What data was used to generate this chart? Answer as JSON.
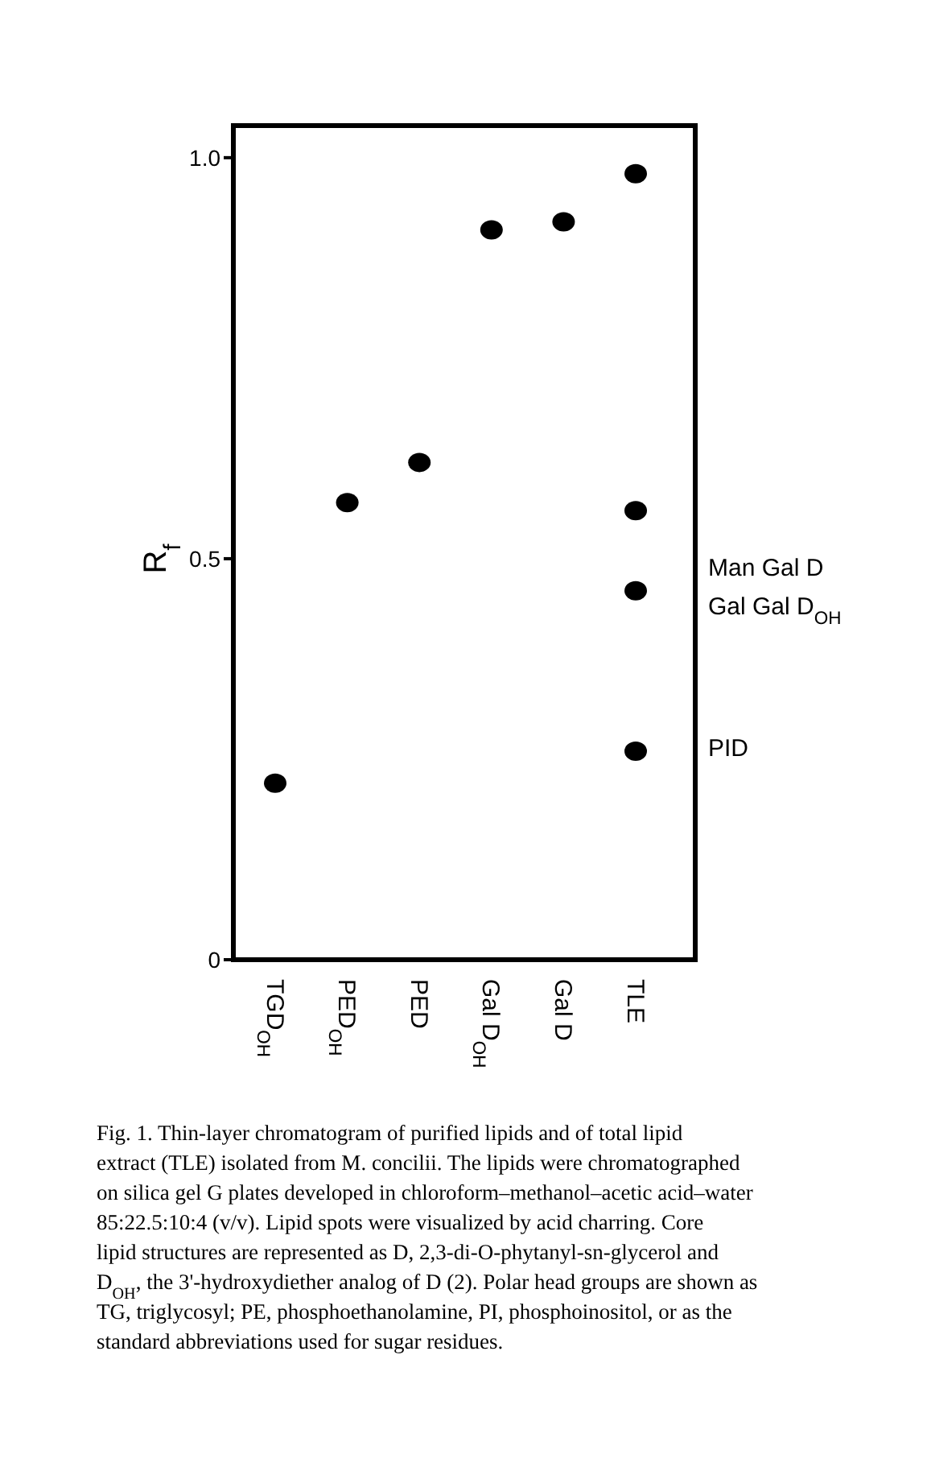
{
  "chart_data": {
    "type": "scatter",
    "ylabel": "R$_{f}$",
    "categories": [
      "TGD$_{OH}$",
      "PED$_{OH}$",
      "PED",
      "Gal D$_{OH}$",
      "Gal D",
      "TLE"
    ],
    "series": [
      {
        "color": "#000000",
        "x": [
          "TGD$_{OH}$",
          "PED$_{OH}$",
          "PED",
          "Gal D$_{OH}$",
          "Gal D",
          "TLE",
          "TLE",
          "TLE",
          "TLE"
        ],
        "values": [
          0.22,
          0.57,
          0.62,
          0.91,
          0.92,
          0.98,
          0.56,
          0.46,
          0.26
        ]
      }
    ],
    "ylim": [
      0,
      1.04
    ],
    "yticks": [
      0,
      0.5,
      {
        "value": 1,
        "label": "1.0"
      }
    ],
    "marker": "circle",
    "grid": false,
    "annotations": [
      "Man Gal D",
      "Gal Gal D$_{OH}$",
      "PID",
      "Fig. 1.  Thin-layer chromatogram of purified lipids and of total lipid extract (TLE) isolated from M. concilii. The lipids were chromatographed on silica gel G plates developed in chloroform–methanol–acetic acid–water 85:22.5:10:4 (v/v). Lipid spots were visualized by acid charring. Core lipid structures are represented as D, 2,3-di-O-phytanyl-sn-glycerol and D$_{OH}$, the 3'-hydroxydiether analog of D (2). Polar head groups are shown as TG, triglycosyl; PE, phosphoethanolamine, PI, phosphoinositol, or as the standard abbreviations used for sugar residues."
    ]
  }
}
